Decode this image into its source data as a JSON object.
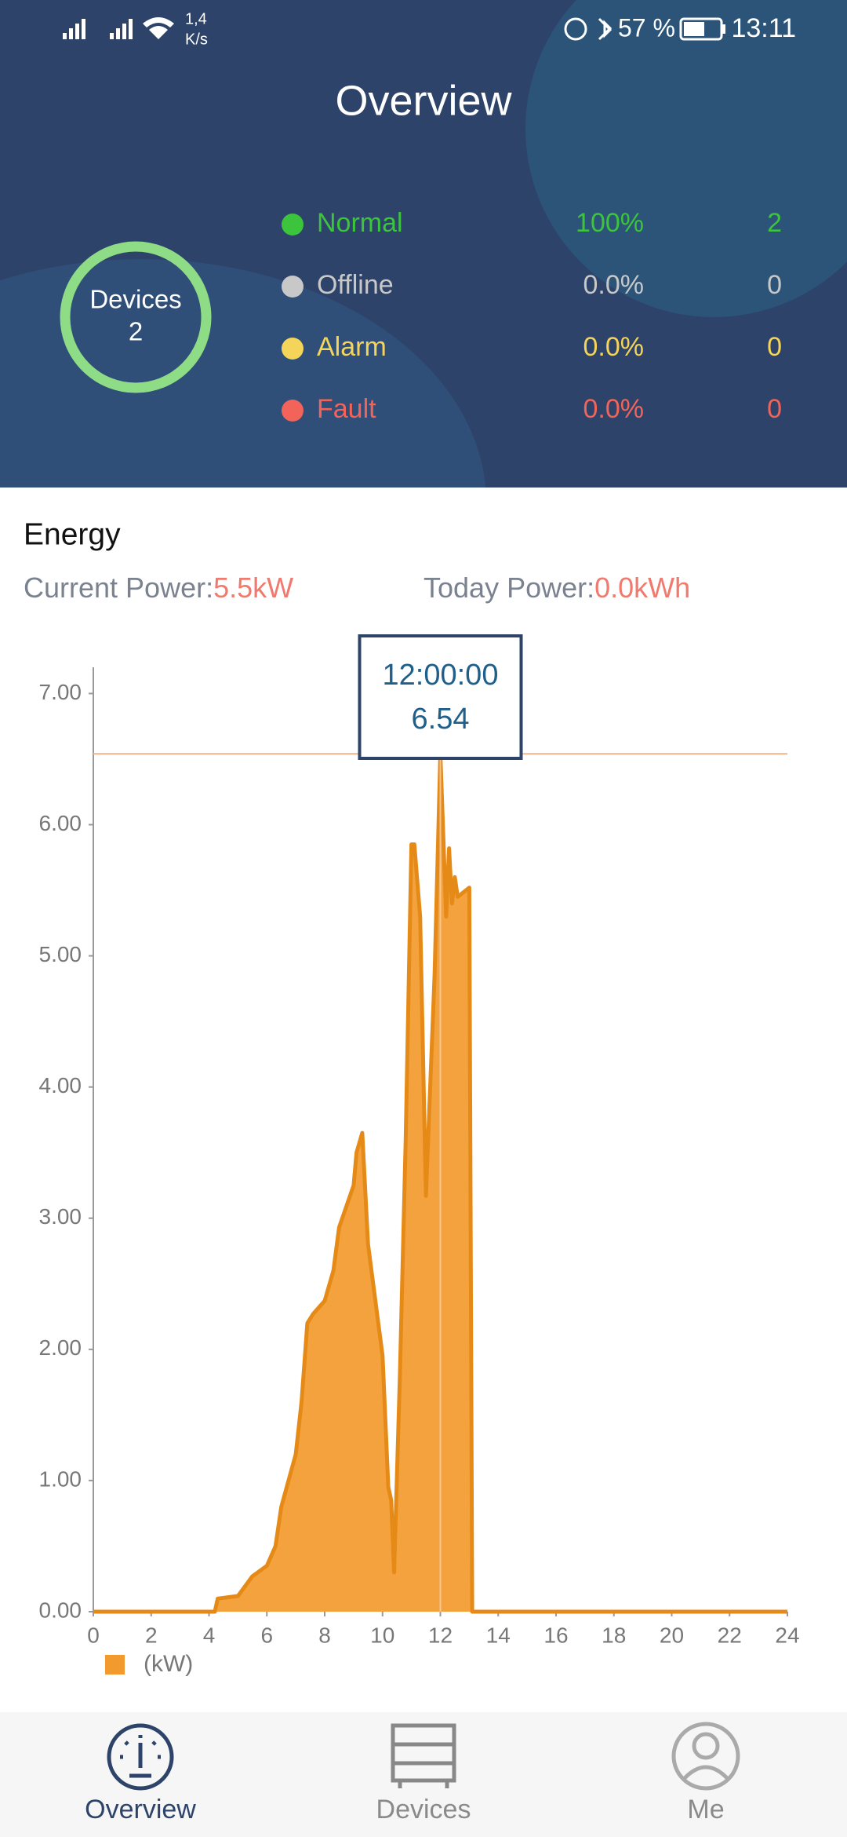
{
  "status_bar": {
    "speed_value": "1,4",
    "speed_unit": "K/s",
    "battery": "57 %",
    "time": "13:11"
  },
  "header": {
    "title": "Overview"
  },
  "devices": {
    "label": "Devices",
    "count": "2",
    "rows": [
      {
        "name": "Normal",
        "percent": "100%",
        "count": "2",
        "color": "#3cc43c"
      },
      {
        "name": "Offline",
        "percent": "0.0%",
        "count": "0",
        "color": "#c8c8c8"
      },
      {
        "name": "Alarm",
        "percent": "0.0%",
        "count": "0",
        "color": "#f5d45a"
      },
      {
        "name": "Fault",
        "percent": "0.0%",
        "count": "0",
        "color": "#f2645a"
      }
    ]
  },
  "energy": {
    "title": "Energy",
    "current_label": "Current Power:",
    "current_value": "5.5kW",
    "today_label": "Today Power:",
    "today_value": "0.0kWh"
  },
  "chart_data": {
    "type": "area",
    "x": [
      0,
      4.2,
      4.3,
      5.0,
      5.5,
      6.0,
      6.3,
      6.5,
      7.0,
      7.2,
      7.4,
      7.6,
      8.0,
      8.3,
      8.5,
      9.0,
      9.1,
      9.3,
      9.5,
      10.0,
      10.2,
      10.3,
      10.4,
      10.6,
      10.8,
      11.0,
      11.1,
      11.3,
      11.5,
      11.8,
      12.0,
      12.2,
      12.3,
      12.4,
      12.5,
      12.6,
      13.0,
      13.1,
      24
    ],
    "series": [
      {
        "name": "(kW)",
        "color": "#f39a2e",
        "values": [
          0,
          0,
          0.1,
          0.12,
          0.27,
          0.35,
          0.5,
          0.8,
          1.2,
          1.6,
          2.2,
          2.27,
          2.37,
          2.6,
          2.93,
          3.25,
          3.5,
          3.65,
          2.8,
          1.95,
          0.95,
          0.85,
          0.3,
          1.8,
          3.6,
          5.85,
          5.85,
          5.3,
          3.17,
          4.85,
          6.54,
          5.3,
          5.82,
          5.4,
          5.6,
          5.45,
          5.52,
          0,
          0
        ]
      }
    ],
    "xlim": [
      0,
      24
    ],
    "xticks": [
      0,
      2,
      4,
      6,
      8,
      10,
      12,
      14,
      16,
      18,
      20,
      22,
      24
    ],
    "ylim": [
      0,
      7.2
    ],
    "yticks": [
      {
        "value": 0,
        "label": "0.00"
      },
      {
        "value": 1,
        "label": "1.00"
      },
      {
        "value": 2,
        "label": "2.00"
      },
      {
        "value": 3,
        "label": "3.00"
      },
      {
        "value": 4,
        "label": "4.00"
      },
      {
        "value": 5,
        "label": "5.00"
      },
      {
        "value": 6,
        "label": "6.00"
      },
      {
        "value": 7,
        "label": "7.00"
      }
    ],
    "tooltip": {
      "x_label": "12:00:00",
      "value": 6.54
    }
  },
  "nav": {
    "items": [
      "Overview",
      "Devices",
      "Me"
    ]
  }
}
